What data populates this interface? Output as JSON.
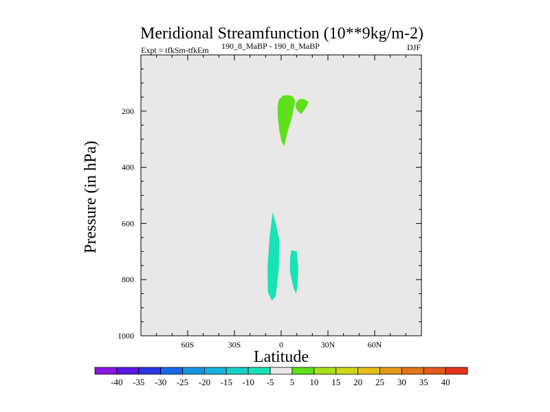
{
  "chart_data": {
    "type": "contour",
    "title": "Meridional Streamfunction (10**9kg/m-2)",
    "subtitle_left_main": "Expt = tfkSm-tfkEm",
    "subtitle_left_sup": "190_8_MaBP - 190_8_MaBP",
    "subtitle_right": "DJF",
    "xlabel": "Latitude",
    "ylabel": "Pressure (in hPa)",
    "xlim": [
      -90,
      90
    ],
    "ylim": [
      0,
      1000
    ],
    "x_ticks": [
      {
        "value": -60,
        "label": "60S"
      },
      {
        "value": -30,
        "label": "30S"
      },
      {
        "value": 0,
        "label": "0"
      },
      {
        "value": 30,
        "label": "30N"
      },
      {
        "value": 60,
        "label": "60N"
      }
    ],
    "y_ticks": [
      {
        "value": 200,
        "label": "200"
      },
      {
        "value": 400,
        "label": "400"
      },
      {
        "value": 600,
        "label": "600"
      },
      {
        "value": 800,
        "label": "800"
      },
      {
        "value": 1000,
        "label": "1000"
      }
    ],
    "plot_background": "#e8e8e8",
    "regions": [
      {
        "name": "upper-positive-main",
        "level": "5 to 10",
        "color": "#5de01a",
        "points": [
          [
            0.3,
            310
          ],
          [
            -1.2,
            270
          ],
          [
            -2.2,
            220
          ],
          [
            -2.4,
            185
          ],
          [
            -1.5,
            160
          ],
          [
            1,
            145
          ],
          [
            4,
            143
          ],
          [
            7,
            146
          ],
          [
            9,
            162
          ],
          [
            7,
            220
          ],
          [
            4,
            275
          ],
          [
            2,
            325
          ],
          [
            0.3,
            310
          ]
        ]
      },
      {
        "name": "upper-positive-lobe",
        "level": "5 to 10",
        "color": "#5de01a",
        "points": [
          [
            9,
            178
          ],
          [
            10.5,
            163
          ],
          [
            12.5,
            156
          ],
          [
            15,
            158
          ],
          [
            17.5,
            168
          ],
          [
            16.5,
            182
          ],
          [
            14.5,
            198
          ],
          [
            13,
            210
          ],
          [
            11.5,
            205
          ],
          [
            9.5,
            190
          ],
          [
            9,
            178
          ]
        ]
      },
      {
        "name": "lower-negative-main",
        "level": "-10 to -5",
        "color": "#17e3b6",
        "points": [
          [
            -5.5,
            560
          ],
          [
            -3.5,
            600
          ],
          [
            -1.2,
            660
          ],
          [
            -1.5,
            760
          ],
          [
            -3.5,
            860
          ],
          [
            -6,
            875
          ],
          [
            -8.5,
            845
          ],
          [
            -8.8,
            760
          ],
          [
            -7.5,
            650
          ],
          [
            -6.3,
            600
          ],
          [
            -5.5,
            560
          ]
        ]
      },
      {
        "name": "lower-negative-small",
        "level": "-10 to -5",
        "color": "#17e3b6",
        "points": [
          [
            6.5,
            695
          ],
          [
            10,
            700
          ],
          [
            11,
            760
          ],
          [
            10.5,
            825
          ],
          [
            9.5,
            850
          ],
          [
            8,
            830
          ],
          [
            5.5,
            770
          ],
          [
            5.8,
            720
          ],
          [
            6.5,
            695
          ]
        ]
      }
    ],
    "colorbar": {
      "labels": [
        "-40",
        "-35",
        "-30",
        "-25",
        "-20",
        "-15",
        "-10",
        "-5",
        "5",
        "10",
        "15",
        "20",
        "25",
        "30",
        "35",
        "40"
      ],
      "colors": [
        "#8b17e3",
        "#5a17e3",
        "#2a35e3",
        "#1a6ae8",
        "#1a92e0",
        "#15b3e0",
        "#17d0c8",
        "#17e3b6",
        "#e8e8e8",
        "#5de01a",
        "#a8e01a",
        "#d0d81a",
        "#e3c01a",
        "#e39a1a",
        "#e3751a",
        "#e35a1a",
        "#e3341a"
      ]
    }
  }
}
